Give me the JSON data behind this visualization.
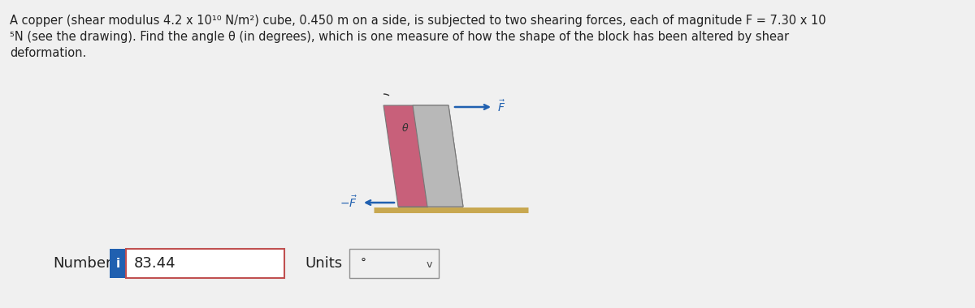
{
  "title_line1": "A copper (shear modulus 4.2 x 10¹⁰ N/m²) cube, 0.450 m on a side, is subjected to two shearing forces, each of magnitude F = 7.30 x 10",
  "title_line2": "⁵N (see the drawing). Find the angle θ (in degrees), which is one measure of how the shape of the block has been altered by shear",
  "title_line3": "deformation.",
  "bg_color": "#f0f0f0",
  "block_fill_color": "#c8607a",
  "gray_fill_color": "#aaaaaa",
  "gray_right_color": "#b8b8b8",
  "ground_color": "#c8a850",
  "arrow_color": "#2060b0",
  "number_label": "Number",
  "number_value": "83.44",
  "units_label": "Units",
  "units_value": "°",
  "info_icon_color": "#2060b0",
  "number_box_border": "#c05050",
  "units_box_border": "#909090",
  "theta_label": "θ",
  "text_fontsize": 10.5,
  "text_color": "#222222"
}
